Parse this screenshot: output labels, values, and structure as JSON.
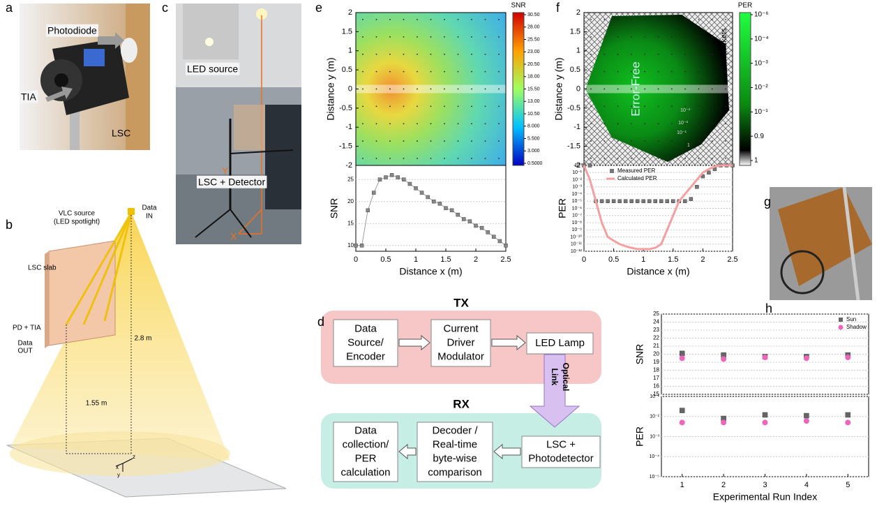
{
  "panel_labels": [
    "a",
    "b",
    "c",
    "d",
    "e",
    "f",
    "g",
    "h"
  ],
  "photo_a": {
    "labels": [
      "Photodiode",
      "TIA",
      "LSC"
    ]
  },
  "photo_c": {
    "labels": [
      "LED source",
      "LSC + Detector",
      "Y",
      "X"
    ]
  },
  "diagram_b": {
    "source": [
      "VLC source",
      "(LED spotlight)"
    ],
    "data_in": [
      "Data",
      "IN"
    ],
    "slab": "LSC slab",
    "pd": "PD + TIA",
    "data_out": [
      "Data",
      "OUT"
    ],
    "height": "2.8 m",
    "distance": "1.55 m",
    "axes": [
      "x",
      "y",
      "z"
    ]
  },
  "diagram_d": {
    "tx": "TX",
    "rx": "RX",
    "link": [
      "Optical",
      "Link"
    ],
    "nodes": [
      {
        "lines": [
          "Data",
          "Source/",
          "Encoder"
        ]
      },
      {
        "lines": [
          "Current",
          "Driver",
          "Modulator"
        ]
      },
      {
        "lines": [
          "LED Lamp"
        ]
      },
      {
        "lines": [
          "Data",
          "collection/",
          "PER",
          "calculation"
        ]
      },
      {
        "lines": [
          "Decoder /",
          "Real-time",
          "byte-wise",
          "comparison"
        ]
      },
      {
        "lines": [
          "LSC +",
          "Photodetector"
        ]
      }
    ]
  },
  "heatmap_e": {
    "ylabel": "Distance y (m)",
    "ylim": [
      -2,
      2
    ],
    "yticks": [
      2,
      1.5,
      1,
      0.5,
      0,
      -0.5,
      -1,
      -1.5,
      -2
    ],
    "colorbar_title": "SNR",
    "clim": [
      0.5,
      30.5
    ],
    "colorbar_ticks": [
      {
        "value": 30.5,
        "label": "30.50"
      },
      {
        "value": 28,
        "label": "28.00"
      },
      {
        "value": 25.5,
        "label": "25.50"
      },
      {
        "value": 23,
        "label": "23.00"
      },
      {
        "value": 20.5,
        "label": "20.50"
      },
      {
        "value": 18,
        "label": "18.00"
      },
      {
        "value": 15.5,
        "label": "15.50"
      },
      {
        "value": 13,
        "label": "13.00"
      },
      {
        "value": 10.5,
        "label": "10.50"
      },
      {
        "value": 8,
        "label": "8.000"
      },
      {
        "value": 5.5,
        "label": "5.500"
      },
      {
        "value": 3,
        "label": "3.000"
      },
      {
        "value": 0.5,
        "label": "0.5000"
      }
    ]
  },
  "heatmap_f": {
    "ylabel": "Distance y (m)",
    "ylim": [
      -2,
      2
    ],
    "yticks": [
      2,
      1.5,
      1,
      0.5,
      0,
      -0.5,
      -1,
      -1.5,
      -2
    ],
    "colorbar_title": "PER",
    "colorbar_ticks": [
      {
        "value": 1e-06,
        "label": "10⁻⁶"
      },
      {
        "value": 0.0001,
        "label": "10⁻⁴"
      },
      {
        "value": 0.001,
        "label": "10⁻³"
      },
      {
        "value": 0.01,
        "label": "10⁻²"
      },
      {
        "value": 0.1,
        "label": "10⁻¹"
      },
      0.9,
      1
    ],
    "annotations": [
      "Error-Free",
      "No packets"
    ],
    "contour_labels": [
      "10⁻³",
      "10⁻²",
      "10⁻¹",
      "1"
    ]
  },
  "chart_data": [
    {
      "type": "line",
      "xlabel": "Distance x (m)",
      "ylabel": "SNR",
      "x": [
        0,
        0.1,
        0.2,
        0.3,
        0.4,
        0.5,
        0.6,
        0.7,
        0.8,
        0.9,
        1,
        1.1,
        1.2,
        1.3,
        1.4,
        1.5,
        1.6,
        1.7,
        1.8,
        1.9,
        2,
        2.1,
        2.2,
        2.3,
        2.4,
        2.5
      ],
      "series": [
        {
          "color": "#888888",
          "style": "line-markers",
          "values": [
            10,
            10,
            18,
            22,
            25,
            25.5,
            26,
            25.5,
            25,
            24,
            23,
            22,
            21,
            20,
            19.5,
            18.5,
            18,
            17,
            16,
            15.5,
            14.5,
            14,
            13,
            12,
            11,
            10
          ]
        }
      ],
      "xlim": [
        0,
        2.5
      ],
      "xticks": [
        0,
        0.5,
        1,
        1.5,
        2,
        2.5
      ],
      "ylim": [
        8.7,
        28.2
      ],
      "yticks": [
        10,
        15,
        20,
        25
      ],
      "grid": true
    },
    {
      "type": "line",
      "xlabel": "Distance x (m)",
      "ylabel": "PER",
      "yscale": "log",
      "legend": "upper left",
      "x": [
        0,
        0.1,
        0.2,
        0.3,
        0.4,
        0.5,
        0.6,
        0.7,
        0.8,
        0.9,
        1,
        1.1,
        1.2,
        1.3,
        1.4,
        1.5,
        1.6,
        1.7,
        1.8,
        1.9,
        2,
        2.1,
        2.2,
        2.3,
        2.4,
        2.5
      ],
      "series": [
        {
          "name": "Measured PER",
          "color": "#777777",
          "style": "markers",
          "values": [
            1,
            1,
            1e-05,
            1e-05,
            1e-05,
            1e-05,
            1e-05,
            1e-05,
            1e-05,
            1e-05,
            1e-05,
            1e-05,
            1e-05,
            1e-05,
            1e-05,
            1e-05,
            1e-05,
            1e-05,
            2e-05,
            0.001,
            0.03,
            0.1,
            0.3,
            1,
            1,
            1
          ]
        },
        {
          "name": "Calculated PER",
          "color": "#f4a0a0",
          "style": "line",
          "values": [
            1,
            0.01,
            1e-05,
            1e-08,
            1e-10,
            3e-11,
            1e-11,
            5e-12,
            3e-12,
            2e-12,
            2e-12,
            2e-12,
            3e-12,
            1e-11,
            1e-09,
            1e-07,
            1e-05,
            0.0001,
            0.001,
            0.01,
            0.1,
            0.3,
            0.7,
            1,
            1,
            1
          ]
        }
      ],
      "xlim": [
        0,
        2.5
      ],
      "xticks": [
        0,
        0.5,
        1,
        1.5,
        2,
        2.5
      ],
      "ylim": [
        1e-12,
        1
      ],
      "yticks": [
        {
          "value": 1,
          "label": "10⁰"
        },
        {
          "value": 0.1,
          "label": "10⁻¹"
        },
        {
          "value": 0.01,
          "label": "10⁻²"
        },
        {
          "value": 0.001,
          "label": "10⁻³"
        },
        {
          "value": 0.0001,
          "label": "10⁻⁴"
        },
        {
          "value": 1e-05,
          "label": "10⁻⁵"
        },
        {
          "value": 1e-06,
          "label": "10⁻⁶"
        },
        {
          "value": 1e-07,
          "label": "10⁻⁷"
        },
        {
          "value": 1e-08,
          "label": "10⁻⁸"
        },
        {
          "value": 1e-09,
          "label": "10⁻⁹"
        },
        {
          "value": 1e-10,
          "label": "10⁻¹⁰"
        },
        {
          "value": 1e-11,
          "label": "10⁻¹¹"
        },
        {
          "value": 1e-12,
          "label": "10⁻¹²"
        }
      ],
      "grid": true
    },
    {
      "type": "scatter",
      "ylabel": "SNR",
      "legend": "upper right",
      "x": [
        1,
        2,
        3,
        4,
        5
      ],
      "series": [
        {
          "name": "Sun",
          "color": "#666666",
          "style": "square",
          "values": [
            20.1,
            19.9,
            19.7,
            19.7,
            19.9
          ]
        },
        {
          "name": "Shadow",
          "color": "#ee66bb",
          "style": "circle",
          "values": [
            19.5,
            19.4,
            19.6,
            19.5,
            19.6
          ]
        }
      ],
      "xlim": [
        0.5,
        5.5
      ],
      "ylim": [
        15,
        25
      ],
      "yticks": [
        15,
        16,
        17,
        18,
        19,
        20,
        21,
        22,
        23,
        24,
        25
      ],
      "grid": true
    },
    {
      "type": "scatter",
      "xlabel": "Experimental Run Index",
      "ylabel": "PER",
      "yscale": "log",
      "x": [
        1,
        2,
        3,
        4,
        5
      ],
      "series": [
        {
          "color": "#666666",
          "style": "square",
          "values": [
            0.02,
            0.008,
            0.012,
            0.011,
            0.012
          ]
        },
        {
          "color": "#ee66bb",
          "style": "circle",
          "values": [
            0.005,
            0.005,
            0.005,
            0.006,
            0.005
          ]
        }
      ],
      "xlim": [
        0.5,
        5.5
      ],
      "xticks": [
        1,
        2,
        3,
        4,
        5
      ],
      "ylim": [
        1e-05,
        0.1
      ],
      "yticks": [
        {
          "value": 0.1,
          "label": "10⁻¹"
        },
        {
          "value": 0.01,
          "label": "10⁻²"
        },
        {
          "value": 0.001,
          "label": "10⁻³"
        },
        {
          "value": 0.0001,
          "label": "10⁻⁴"
        },
        {
          "value": 1e-05,
          "label": "10⁻⁵"
        }
      ],
      "grid": true
    }
  ]
}
